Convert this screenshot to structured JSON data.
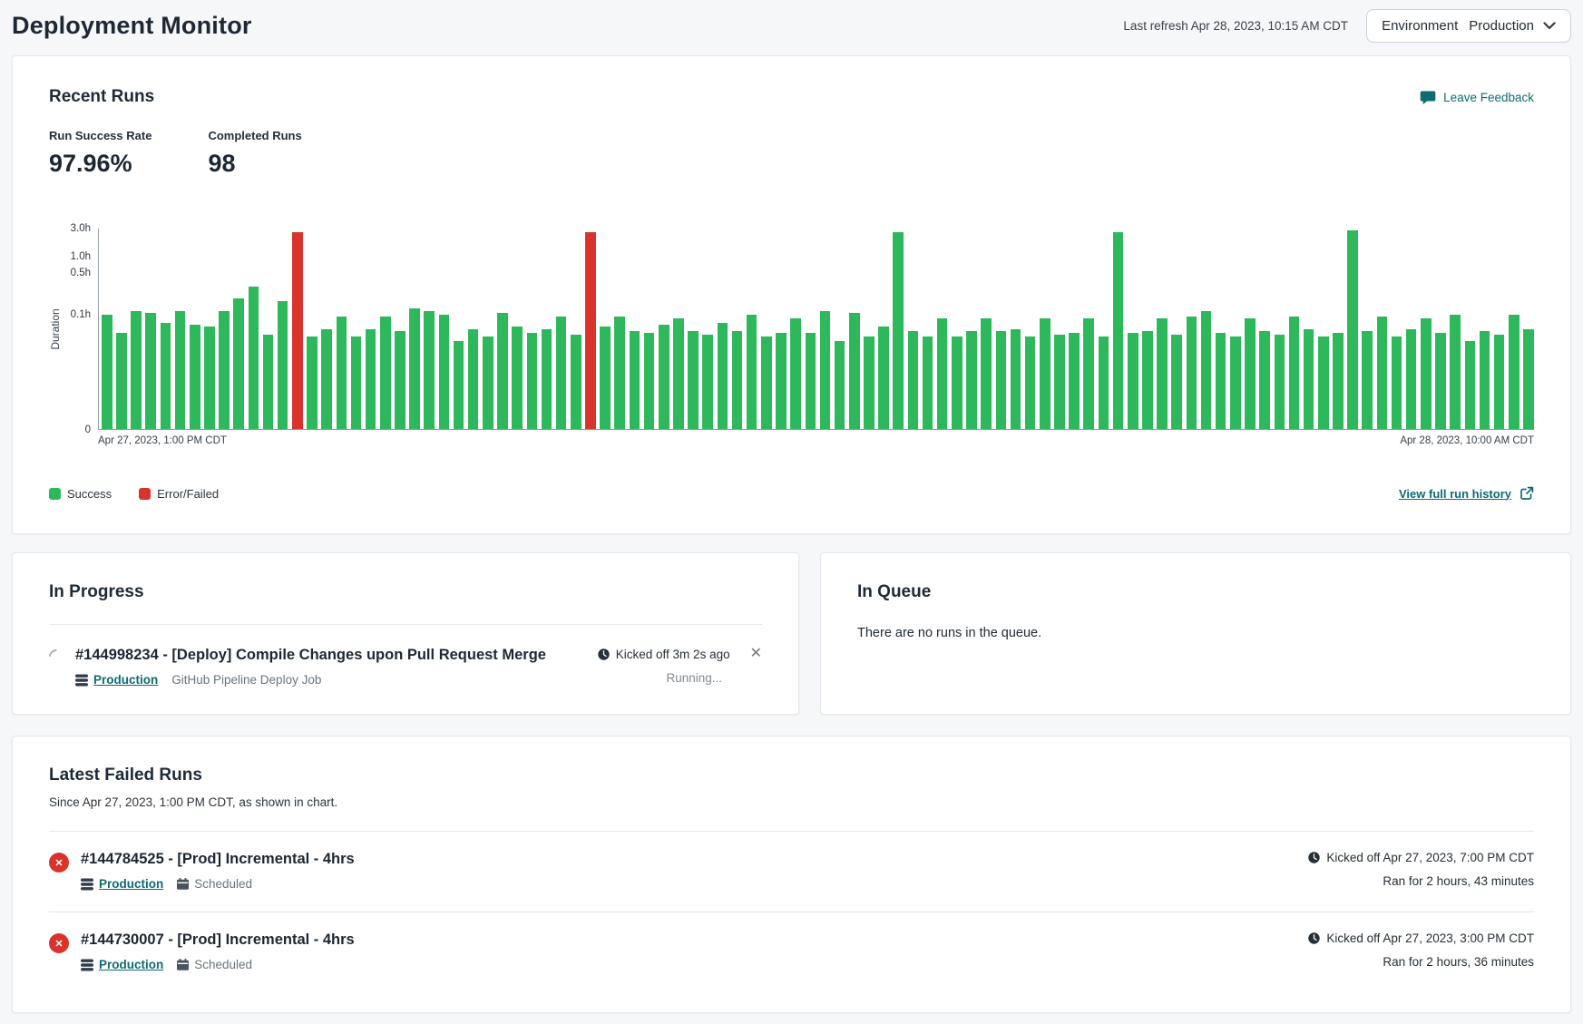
{
  "colors": {
    "accent_teal": "#0e6b72",
    "success_green": "#2eb85c",
    "error_red": "#d9342b",
    "heading_navy": "#1e2834",
    "page_bg": "#f6f7f8",
    "border_gray": "#e4e7eb",
    "text_gray": "#6a737d"
  },
  "icons": {
    "close_glyph": "✕",
    "feedback": "speech-bubble-icon",
    "environment": "database-stack-icon",
    "scheduled": "calendar-icon",
    "kickoff": "clock-icon",
    "dropdown": "chevron-down-icon",
    "history": "external-link-icon",
    "in_progress": "spinner-icon",
    "failed": "x-circle-icon"
  },
  "header": {
    "title": "Deployment Monitor",
    "last_refresh": "Last refresh Apr 28, 2023, 10:15 AM CDT",
    "environment_label": "Environment",
    "environment_value": "Production"
  },
  "recent_runs": {
    "title": "Recent Runs",
    "feedback_label": "Leave Feedback",
    "stats": [
      {
        "label": "Run Success Rate",
        "value": "97.96%"
      },
      {
        "label": "Completed Runs",
        "value": "98"
      }
    ],
    "view_link": "View full run history"
  },
  "chart_data": {
    "type": "bar",
    "title": "",
    "ylabel": "Duration",
    "xlabel": "",
    "x_start_label": "Apr 27, 2023, 1:00 PM CDT",
    "x_end_label": "Apr 28, 2023, 10:00 AM CDT",
    "y_scale": "non-linear duration axis (0 to 3.0h)",
    "y_ticks": [
      {
        "label": "0",
        "pos_pct": 0
      },
      {
        "label": "0.1h",
        "pos_pct": 57
      },
      {
        "label": "0.5h",
        "pos_pct": 78
      },
      {
        "label": "1.0h",
        "pos_pct": 86
      },
      {
        "label": "3.0h",
        "pos_pct": 100
      }
    ],
    "legend": [
      "Success",
      "Error/Failed"
    ],
    "legend_position": "bottom-left",
    "grid": false,
    "bar_count": 98,
    "heights_pct": [
      57,
      48,
      59,
      58,
      53,
      59,
      52,
      51,
      59,
      65,
      71,
      47,
      64,
      98,
      46,
      50,
      56,
      46,
      50,
      56,
      49,
      60,
      59,
      57,
      44,
      50,
      46,
      58,
      51,
      48,
      50,
      56,
      47,
      98,
      51,
      56,
      49,
      48,
      52,
      55,
      49,
      47,
      53,
      49,
      57,
      46,
      48,
      55,
      48,
      59,
      44,
      58,
      46,
      51,
      98,
      49,
      46,
      55,
      46,
      49,
      55,
      49,
      50,
      46,
      55,
      47,
      48,
      55,
      46,
      98,
      48,
      49,
      55,
      47,
      56,
      59,
      48,
      46,
      55,
      49,
      47,
      56,
      50,
      46,
      48,
      99,
      49,
      56,
      46,
      50,
      55,
      48,
      57,
      44,
      49,
      47,
      57,
      50
    ],
    "failed_indexes": [
      13,
      33
    ],
    "failed_durations_h": [
      2.6,
      2.72
    ],
    "long_success_indexes": [
      54,
      69,
      85
    ],
    "colors": {
      "success": "#2eb85c",
      "failed": "#d9342b"
    }
  },
  "in_progress": {
    "title": "In Progress",
    "run": {
      "title": "#144998234 - [Deploy] Compile Changes upon Pull Request Merge",
      "environment": "Production",
      "job": "GitHub Pipeline Deploy Job",
      "kicked_off": "Kicked off 3m 2s ago",
      "status": "Running..."
    }
  },
  "in_queue": {
    "title": "In Queue",
    "empty_message": "There are no runs in the queue."
  },
  "failed_runs": {
    "title": "Latest Failed Runs",
    "subtitle": "Since Apr 27, 2023, 1:00 PM CDT, as shown in chart.",
    "runs": [
      {
        "title": "#144784525 - [Prod] Incremental - 4hrs",
        "environment": "Production",
        "trigger": "Scheduled",
        "kicked_off": "Kicked off Apr 27, 2023, 7:00 PM CDT",
        "ran_for": "Ran for 2 hours, 43 minutes"
      },
      {
        "title": "#144730007 - [Prod] Incremental - 4hrs",
        "environment": "Production",
        "trigger": "Scheduled",
        "kicked_off": "Kicked off Apr 27, 2023, 3:00 PM CDT",
        "ran_for": "Ran for 2 hours, 36 minutes"
      }
    ]
  }
}
